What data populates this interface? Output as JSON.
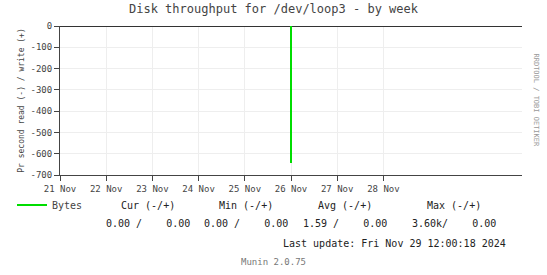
{
  "chart_data": {
    "type": "line",
    "title": "Disk throughput for /dev/loop3 - by week",
    "ylabel": "Pr second read (-) / write (+)",
    "x": [
      1732492800,
      1732492800
    ],
    "series": [
      {
        "name": "Bytes",
        "color": "#00dd00",
        "values": [
          0,
          -644
        ]
      }
    ],
    "xlim": [
      1732060800,
      1732924800
    ],
    "xticks": [
      {
        "value": 1732060800,
        "label": "21 Nov"
      },
      {
        "value": 1732147200,
        "label": "22 Nov"
      },
      {
        "value": 1732233600,
        "label": "23 Nov"
      },
      {
        "value": 1732320000,
        "label": "24 Nov"
      },
      {
        "value": 1732406400,
        "label": "25 Nov"
      },
      {
        "value": 1732492800,
        "label": "26 Nov"
      },
      {
        "value": 1732579200,
        "label": "27 Nov"
      },
      {
        "value": 1732665600,
        "label": "28 Nov"
      }
    ],
    "ylim": [
      -700,
      0
    ],
    "yticks": [
      0,
      -100,
      -200,
      -300,
      -400,
      -500,
      -600,
      -700
    ],
    "grid": true,
    "legend": "bottom",
    "annotations": [
      "Cur (-/+)",
      "Min (-/+)",
      "Avg (-/+)",
      "Max (-/+)",
      "0.00 /    0.00",
      "0.00 /    0.00",
      "1.59 /    0.00",
      "3.60k/    0.00",
      "Last update: Fri Nov 29 12:00:18 2024",
      "Munin 2.0.75",
      "RRDTOOL / TOBI OETIKER"
    ]
  }
}
